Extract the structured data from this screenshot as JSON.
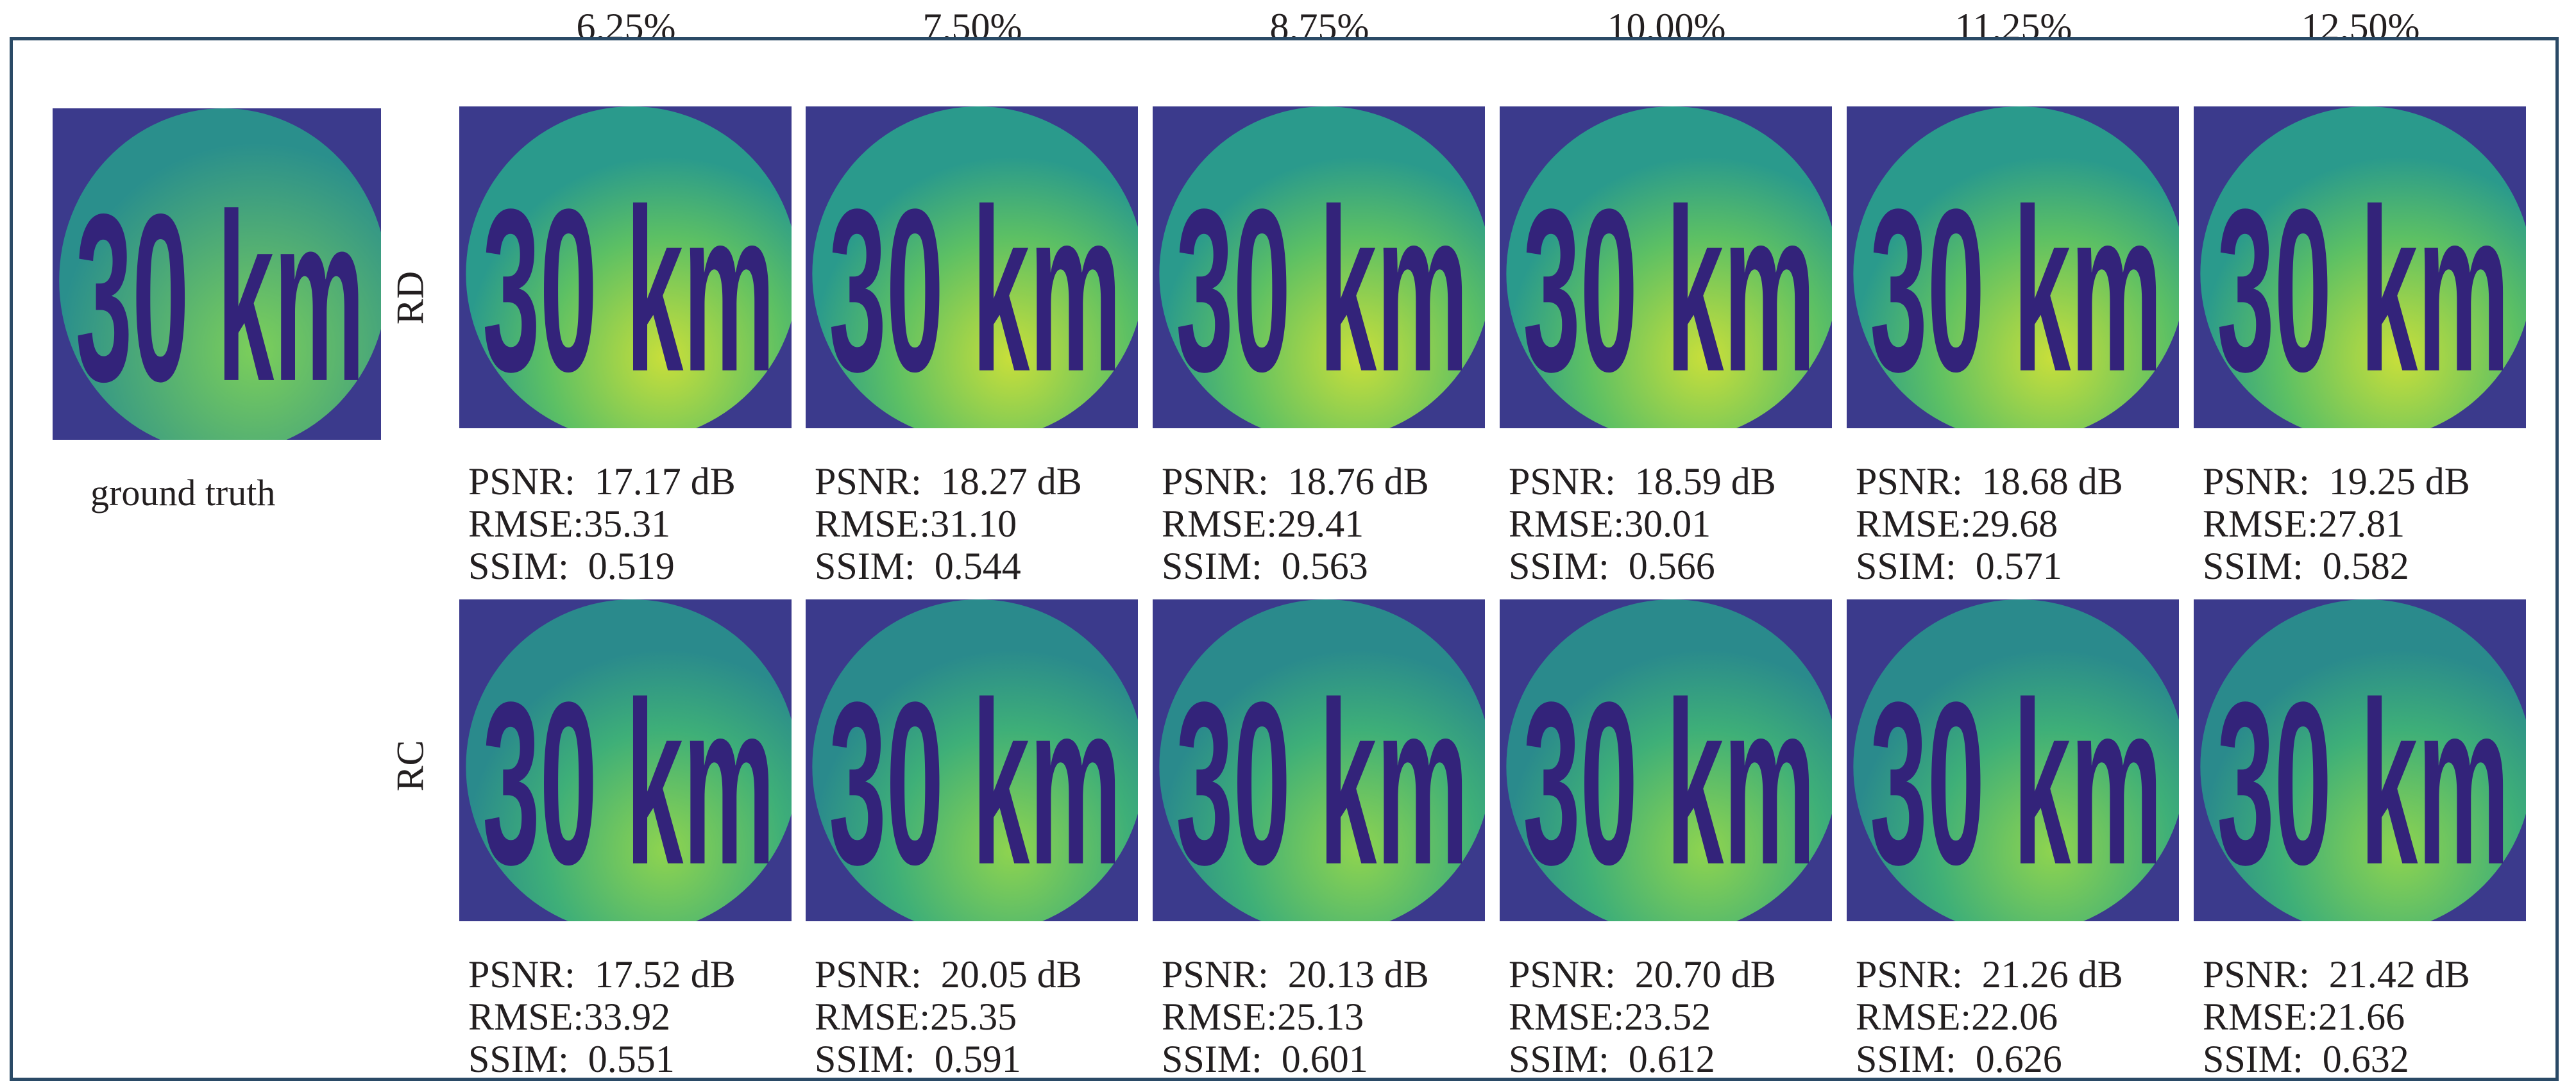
{
  "columns": [
    "6.25%",
    "7.50%",
    "8.75%",
    "10.00%",
    "11.25%",
    "12.50%"
  ],
  "ground_truth_label": "ground truth",
  "metric_labels": {
    "psnr": "PSNR:",
    "rmse": "RMSE:",
    "ssim": "SSIM:"
  },
  "rows": [
    {
      "label": "RD",
      "cells": [
        {
          "psnr": "17.17 dB",
          "rmse": "35.31",
          "ssim": "0.519"
        },
        {
          "psnr": "18.27 dB",
          "rmse": "31.10",
          "ssim": "0.544"
        },
        {
          "psnr": "18.76 dB",
          "rmse": "29.41",
          "ssim": "0.563"
        },
        {
          "psnr": "18.59 dB",
          "rmse": "30.01",
          "ssim": "0.566"
        },
        {
          "psnr": "18.68 dB",
          "rmse": "29.68",
          "ssim": "0.571"
        },
        {
          "psnr": "19.25 dB",
          "rmse": "27.81",
          "ssim": "0.582"
        }
      ]
    },
    {
      "label": "RC",
      "cells": [
        {
          "psnr": "17.52 dB",
          "rmse": "33.92",
          "ssim": "0.551"
        },
        {
          "psnr": "20.05 dB",
          "rmse": "25.35",
          "ssim": "0.591"
        },
        {
          "psnr": "20.13 dB",
          "rmse": "25.13",
          "ssim": "0.601"
        },
        {
          "psnr": "20.70 dB",
          "rmse": "23.52",
          "ssim": "0.612"
        },
        {
          "psnr": "21.26 dB",
          "rmse": "22.06",
          "ssim": "0.626"
        },
        {
          "psnr": "21.42 dB",
          "rmse": "21.66",
          "ssim": "0.632"
        }
      ]
    }
  ],
  "sign_text": "30 km",
  "colors": {
    "frame": "#2a4a66",
    "background": "#3b3a8c",
    "disc": "#2c9a8c",
    "digits": "#33237a",
    "highlight": "#d4e23c"
  }
}
